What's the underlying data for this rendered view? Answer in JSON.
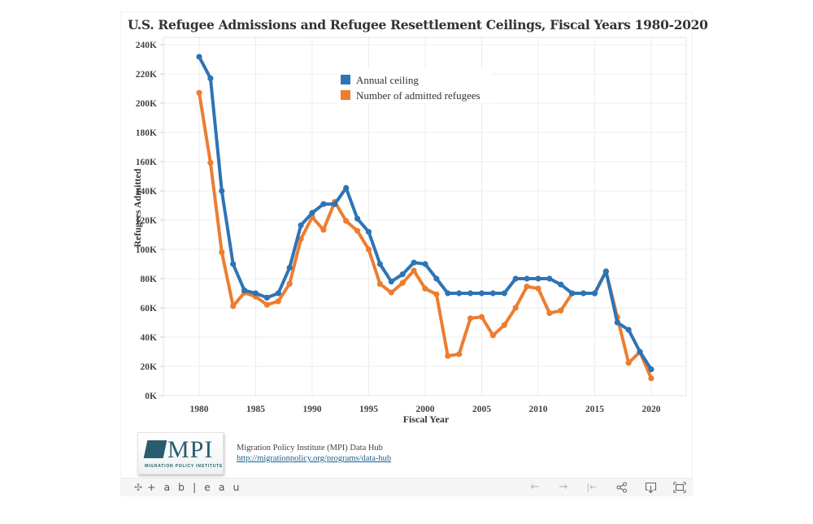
{
  "title": "U.S. Refugee Admissions and Refugee Resettlement Ceilings, Fiscal Years 1980-2020",
  "chart_data": {
    "type": "line",
    "title": "U.S. Refugee Admissions and Refugee Resettlement Ceilings, Fiscal Years 1980-2020",
    "xlabel": "Fiscal Year",
    "ylabel": "Refugees Admitted",
    "x": [
      1980,
      1981,
      1982,
      1983,
      1984,
      1985,
      1986,
      1987,
      1988,
      1989,
      1990,
      1991,
      1992,
      1993,
      1994,
      1995,
      1996,
      1997,
      1998,
      1999,
      2000,
      2001,
      2002,
      2003,
      2004,
      2005,
      2006,
      2007,
      2008,
      2009,
      2010,
      2011,
      2012,
      2013,
      2014,
      2015,
      2016,
      2017,
      2018,
      2019,
      2020
    ],
    "xlim": [
      1976,
      2023
    ],
    "ylim": [
      0,
      240000
    ],
    "x_ticks": [
      1980,
      1985,
      1990,
      1995,
      2000,
      2005,
      2010,
      2015,
      2020
    ],
    "x_tick_labels": [
      "1980",
      "1985",
      "1990",
      "1995",
      "2000",
      "2005",
      "2010",
      "2015",
      "2020"
    ],
    "y_ticks": [
      0,
      20000,
      40000,
      60000,
      80000,
      100000,
      120000,
      140000,
      160000,
      180000,
      200000,
      220000,
      240000
    ],
    "y_tick_labels": [
      "0K",
      "20K",
      "40K",
      "60K",
      "80K",
      "100K",
      "120K",
      "140K",
      "160K",
      "180K",
      "200K",
      "220K",
      "240K"
    ],
    "grid": true,
    "legend_position": "top-center",
    "series": [
      {
        "name": "Annual ceiling",
        "color": "#2e74b5",
        "values": [
          231700,
          217000,
          140000,
          90000,
          72000,
          70000,
          67000,
          70000,
          87500,
          116500,
          125000,
          131000,
          131000,
          142000,
          121000,
          112000,
          90000,
          78000,
          83000,
          91000,
          90000,
          80000,
          70000,
          70000,
          70000,
          70000,
          70000,
          70000,
          80000,
          80000,
          80000,
          80000,
          76000,
          70000,
          70000,
          70000,
          85000,
          50000,
          45000,
          30000,
          18000
        ]
      },
      {
        "name": "Number of admitted refugees",
        "color": "#ed7d31",
        "values": [
          207116,
          159252,
          98096,
          61218,
          70393,
          67704,
          62146,
          64528,
          76483,
          107070,
          122066,
          113389,
          132531,
          119448,
          112682,
          99974,
          76403,
          70488,
          77080,
          85525,
          73147,
          69304,
          27131,
          28403,
          52873,
          53813,
          41223,
          48218,
          60107,
          74602,
          73293,
          56384,
          58179,
          69909,
          69975,
          69920,
          84989,
          53691,
          22405,
          29916,
          11814
        ]
      }
    ]
  },
  "footer": {
    "logo_text": "MPI",
    "logo_subtext": "MIGRATION POLICY INSTITUTE",
    "source_line": "Migration Policy Institute (MPI) Data Hub",
    "source_link": "http://migrationpolicy.org/programs/data-hub"
  },
  "toolbar": {
    "brand": "+ a b | e a u",
    "brand_icon": "tableau-logo-icon",
    "buttons": [
      {
        "name": "undo-button",
        "icon": "arrow-left-icon",
        "glyph": "←"
      },
      {
        "name": "redo-button",
        "icon": "arrow-right-icon",
        "glyph": "→"
      },
      {
        "name": "revert-button",
        "icon": "revert-icon",
        "glyph": "|←"
      },
      {
        "name": "share-button",
        "icon": "share-icon",
        "glyph": "⋖"
      },
      {
        "name": "download-button",
        "icon": "download-icon",
        "glyph": "⇩"
      },
      {
        "name": "fullscreen-button",
        "icon": "fullscreen-icon",
        "glyph": "⛶"
      }
    ]
  }
}
